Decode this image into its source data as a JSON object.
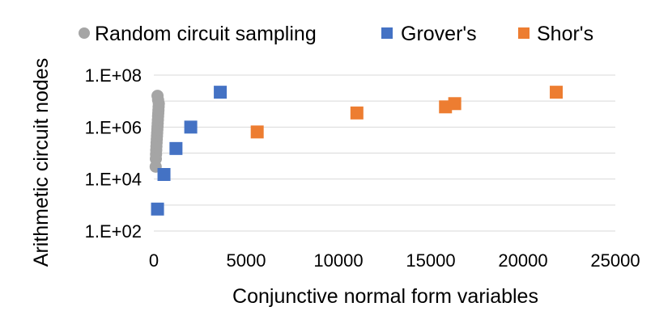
{
  "chart_data": {
    "type": "scatter",
    "title": "",
    "xlabel": "Conjunctive normal form variables",
    "ylabel": "Arithmetic circuit nodes",
    "xlim": [
      0,
      25000
    ],
    "ylim": [
      100,
      100000000
    ],
    "yscale": "log",
    "x_ticks": [
      "0",
      "5000",
      "10000",
      "15000",
      "20000",
      "25000"
    ],
    "y_ticks": [
      "1.E+02",
      "1.E+04",
      "1.E+06",
      "1.E+08"
    ],
    "grid": "horizontal major gridlines",
    "legend_position": "top",
    "series": [
      {
        "name": "Random circuit sampling",
        "marker": "circle",
        "color": "#a5a5a5",
        "points": [
          [
            100,
            30000
          ],
          [
            110,
            60000
          ],
          [
            120,
            90000
          ],
          [
            130,
            130000
          ],
          [
            140,
            180000
          ],
          [
            150,
            250000
          ],
          [
            160,
            340000
          ],
          [
            170,
            450000
          ],
          [
            180,
            600000
          ],
          [
            190,
            800000
          ],
          [
            200,
            1050000
          ],
          [
            210,
            1400000
          ],
          [
            220,
            1900000
          ],
          [
            230,
            2600000
          ],
          [
            240,
            3400000
          ],
          [
            250,
            4500000
          ],
          [
            260,
            6000000
          ],
          [
            270,
            8000000
          ],
          [
            230,
            11000000
          ],
          [
            200,
            16000000
          ]
        ]
      },
      {
        "name": "Grover's",
        "marker": "square",
        "color": "#4472c4",
        "points": [
          [
            200,
            700
          ],
          [
            550,
            15000
          ],
          [
            1200,
            150000
          ],
          [
            2000,
            1000000
          ],
          [
            3600,
            22000000
          ]
        ]
      },
      {
        "name": "Shor's",
        "marker": "square",
        "color": "#ed7d31",
        "points": [
          [
            5600,
            650000
          ],
          [
            11000,
            3500000
          ],
          [
            15800,
            6000000
          ],
          [
            16300,
            8000000
          ],
          [
            21800,
            22000000
          ]
        ]
      }
    ]
  }
}
